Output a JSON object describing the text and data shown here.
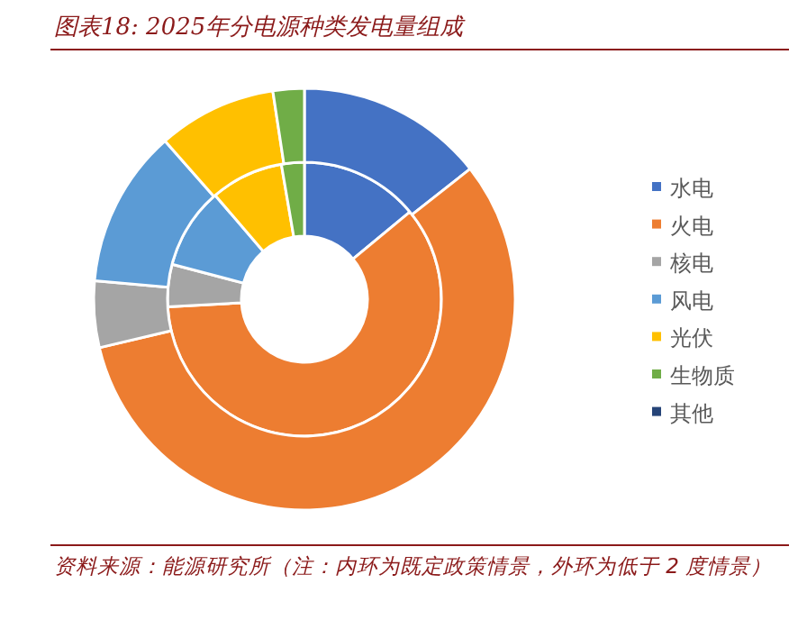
{
  "chart_data": {
    "type": "donut",
    "title": "图表18:  2025年分电源种类发电量组成",
    "categories": [
      "水电",
      "火电",
      "核电",
      "风电",
      "光伏",
      "生物质",
      "其他"
    ],
    "colors": [
      "#4472c4",
      "#ed7d31",
      "#a5a5a5",
      "#5b9bd5",
      "#ffc000",
      "#70ad47",
      "#264478"
    ],
    "series": [
      {
        "values": [
          14.0,
          60.1,
          5.0,
          9.6,
          8.6,
          2.7,
          0
        ]
      },
      {
        "values": [
          14.4,
          56.9,
          5.1,
          12.1,
          9.1,
          2.4,
          0
        ]
      }
    ],
    "legend": "right",
    "annotations": [
      "资料来源：能源研究所（注：内环为既定政策情景，外环为低于 2 度情景）"
    ]
  }
}
